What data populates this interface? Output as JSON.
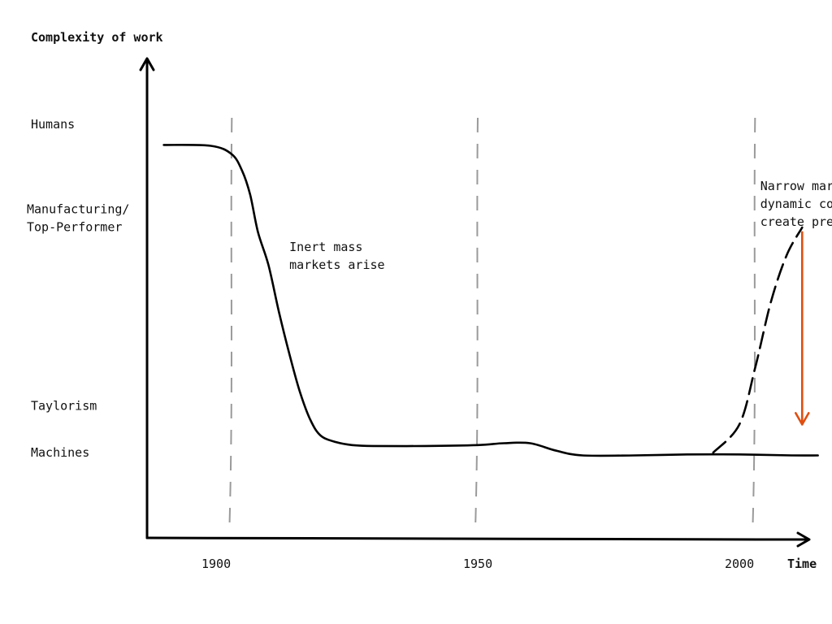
{
  "colors": {
    "pressure": "#e04e10"
  },
  "chart_data": {
    "type": "line",
    "title": "",
    "ylabel": "Complexity of work",
    "xlabel": "Time",
    "x_ticks": [
      {
        "label": "1900",
        "value": 1900
      },
      {
        "label": "1950",
        "value": 1950
      },
      {
        "label": "2000",
        "value": 2000
      }
    ],
    "y_levels": [
      {
        "label": "Humans",
        "value": 4.0
      },
      {
        "label": "Manufacturing/\nTop-Performer",
        "value": 3.0
      },
      {
        "label": "Taylorism",
        "value": 1.0
      },
      {
        "label": "Machines",
        "value": 0.5
      }
    ],
    "xlim": [
      1888,
      2016
    ],
    "ylim": [
      -0.1,
      4.8
    ],
    "grid": false,
    "era_markers": [
      1903,
      1950,
      2003
    ],
    "series": [
      {
        "style": "solid",
        "x": [
          1890,
          1899,
          1903,
          1905,
          1906.5,
          1908,
          1910,
          1912,
          1914,
          1916,
          1918,
          1920,
          1923,
          1926,
          1930,
          1940,
          1950,
          1955,
          1960,
          1965,
          1970,
          1980,
          1990,
          2000,
          2010,
          2015
        ],
        "y": [
          3.78,
          3.77,
          3.68,
          3.5,
          3.25,
          2.85,
          2.5,
          2.0,
          1.55,
          1.15,
          0.85,
          0.68,
          0.61,
          0.58,
          0.57,
          0.57,
          0.58,
          0.6,
          0.6,
          0.52,
          0.47,
          0.47,
          0.48,
          0.48,
          0.47,
          0.47
        ]
      },
      {
        "style": "dashed",
        "x": [
          1995,
          2000,
          2003,
          2006,
          2009,
          2012
        ],
        "y": [
          0.5,
          0.8,
          1.4,
          2.1,
          2.6,
          2.9
        ]
      }
    ],
    "annotations": [
      {
        "text": "Inert mass\nmarkets arise",
        "x": 1914,
        "y": 2.65
      },
      {
        "text": "Narrow markets,\ndynamic companies\ncreate pressure",
        "x": 2004,
        "y": 3.3
      }
    ],
    "arrows": [
      {
        "label": "",
        "x": 2012,
        "y_from": 2.85,
        "y_to": 0.8
      }
    ]
  }
}
